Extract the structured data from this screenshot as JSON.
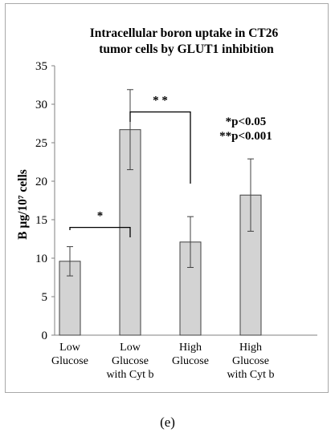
{
  "chart_data": {
    "type": "bar",
    "title_lines": [
      "Intracellular boron uptake in CT26",
      "tumor cells by GLUT1 inhibition"
    ],
    "ylabel": "B µg/10⁷ cells",
    "ylim": [
      0,
      35
    ],
    "yticks": [
      0,
      5,
      10,
      15,
      20,
      25,
      30,
      35
    ],
    "categories": [
      [
        "Low",
        "Glucose"
      ],
      [
        "Low",
        "Glucose",
        "with Cyt b"
      ],
      [
        "High",
        "Glucose"
      ],
      [
        "High",
        "Glucose",
        "with Cyt b"
      ]
    ],
    "values": [
      9.6,
      26.7,
      12.1,
      18.2
    ],
    "errors": [
      1.9,
      5.2,
      3.3,
      4.7
    ],
    "bar_color": "#d3d3d3",
    "significance": [
      {
        "from": 0,
        "to": 1,
        "label": "*",
        "level": 14
      },
      {
        "from": 1,
        "to": 2,
        "label": "* *",
        "level": 29
      }
    ],
    "legend_notes": [
      "*p<0.05",
      "**p<0.001"
    ]
  },
  "panel_label": "(e)"
}
